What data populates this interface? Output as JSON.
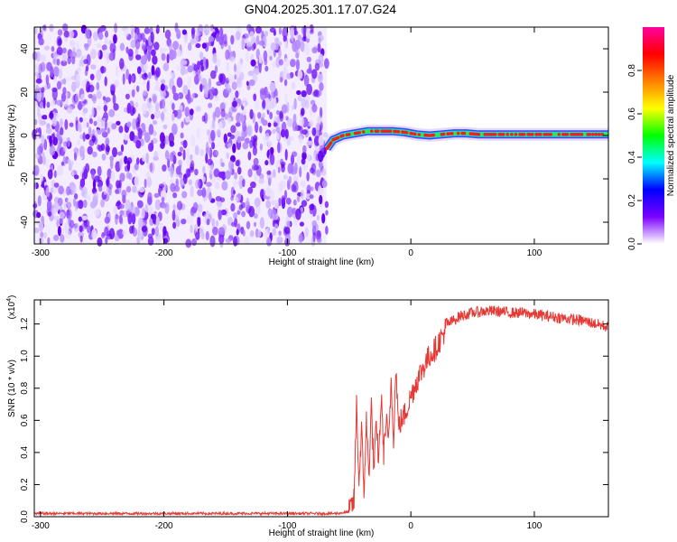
{
  "title": "GN04.2025.301.17.07.G24",
  "chart_data": [
    {
      "type": "heatmap",
      "xlabel": "Height of straight line (km)",
      "ylabel": "Frequency (Hz)",
      "xlim": [
        -305,
        160
      ],
      "ylim": [
        -50,
        50
      ],
      "x_ticks": [
        "-300",
        "-200",
        "-100",
        "0",
        "100"
      ],
      "y_ticks": [
        "-40",
        "-20",
        "0",
        "20",
        "40"
      ],
      "colorbar": {
        "label": "Normalized spectral amplitude",
        "range": [
          0,
          1
        ],
        "ticks": [
          "0.0",
          "0.2",
          "0.4",
          "0.6",
          "0.8"
        ],
        "colormap": [
          "#ffffff",
          "#7a00ff",
          "#0000ff",
          "#00ffff",
          "#00ff00",
          "#ffff00",
          "#ff8000",
          "#ff0000",
          "#ff00a0"
        ]
      },
      "noise_region_x": [
        -305,
        -68
      ],
      "ridge": {
        "x": [
          -68,
          -63,
          -55,
          -45,
          -35,
          -25,
          -15,
          -5,
          5,
          15,
          25,
          35,
          45,
          55,
          65,
          75,
          85,
          95,
          105,
          115,
          125,
          135,
          145,
          160
        ],
        "freq": [
          -6,
          -2,
          0,
          1,
          2,
          2,
          2,
          1.5,
          0.5,
          0,
          0.5,
          1,
          1,
          0.5,
          0.5,
          0.5,
          0.5,
          0.5,
          0.5,
          0.5,
          0.5,
          0.5,
          0.5,
          0.5
        ]
      }
    },
    {
      "type": "line",
      "xlabel": "Height of straight line (km)",
      "ylabel": "SNR (10 * v/v)",
      "y_multiplier": "(x10",
      "y_multiplier_exp": "4",
      "y_multiplier_close": ")",
      "xlim": [
        -305,
        160
      ],
      "ylim": [
        0,
        1.35
      ],
      "x_ticks": [
        "-300",
        "-200",
        "-100",
        "0",
        "100"
      ],
      "y_ticks": [
        "0.0",
        "0.2",
        "0.4",
        "0.6",
        "0.8",
        "1.0",
        "1.2"
      ],
      "color": "#e53935",
      "series": {
        "x": [
          -305,
          -200,
          -100,
          -60,
          -50,
          -46,
          -44,
          -42,
          -40,
          -38,
          -36,
          -34,
          -32,
          -30,
          -28,
          -26,
          -24,
          -22,
          -20,
          -18,
          -16,
          -14,
          -12,
          -10,
          -8,
          -6,
          -4,
          -2,
          0,
          5,
          10,
          15,
          20,
          25,
          30,
          40,
          50,
          60,
          70,
          80,
          90,
          100,
          110,
          120,
          130,
          140,
          150,
          160
        ],
        "y": [
          0.02,
          0.02,
          0.02,
          0.02,
          0.03,
          0.1,
          0.7,
          0.2,
          0.55,
          0.15,
          0.6,
          0.25,
          0.7,
          0.3,
          0.55,
          0.35,
          0.75,
          0.4,
          0.6,
          0.45,
          0.85,
          0.5,
          0.93,
          0.55,
          0.6,
          0.62,
          0.66,
          0.7,
          0.75,
          0.85,
          0.93,
          1.0,
          1.05,
          1.12,
          1.2,
          1.25,
          1.27,
          1.28,
          1.28,
          1.27,
          1.27,
          1.26,
          1.25,
          1.24,
          1.23,
          1.22,
          1.2,
          1.18
        ]
      }
    }
  ]
}
